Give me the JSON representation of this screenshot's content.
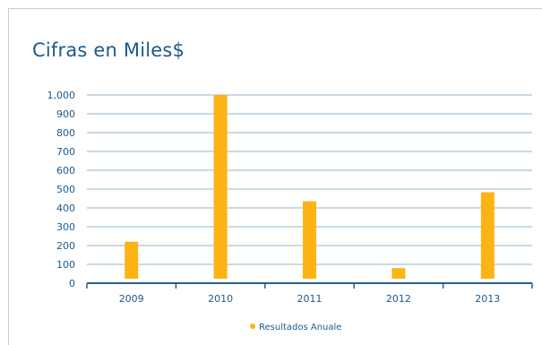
{
  "colors": {
    "bar": "#fcb415",
    "grid": "#a9c4d8",
    "axis": "#2a5f8f",
    "text": "#1b5a8e",
    "frame": "#b9cfe1"
  },
  "chart_data": {
    "type": "bar",
    "title": "Cifras en Miles$",
    "categories": [
      "2009",
      "2010",
      "2011",
      "2012",
      "2013"
    ],
    "series": [
      {
        "name": "Resultados Anuale",
        "values": [
          220,
          1000,
          435,
          80,
          483
        ]
      }
    ],
    "ylim": [
      0,
      1000
    ],
    "yticks": [
      "0",
      "100",
      "200",
      "300",
      "400",
      "500",
      "600",
      "700",
      "800",
      "900",
      "1,000"
    ],
    "grid": true,
    "legend_position": "bottom"
  }
}
